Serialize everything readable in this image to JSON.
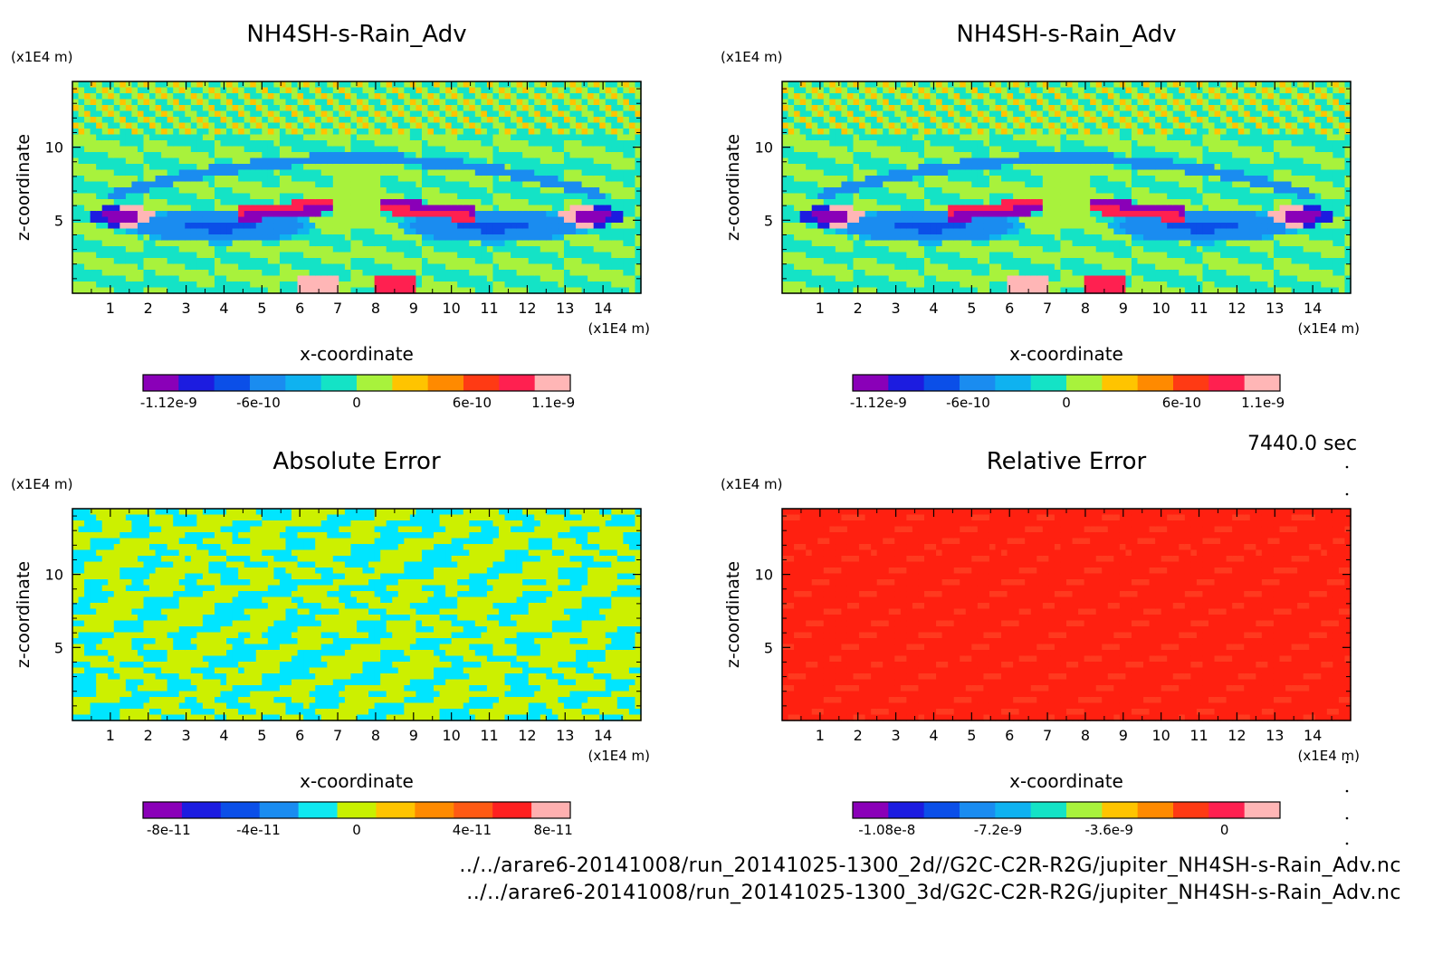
{
  "chart_data": [
    {
      "type": "heatmap",
      "title": "NH4SH-s-Rain_Adv",
      "xlabel": "x-coordinate",
      "ylabel": "z-coordinate",
      "x_unit": "(x1E4 m)",
      "y_unit": "(x1E4 m)",
      "xlim": [
        0,
        15
      ],
      "ylim": [
        0,
        14.5
      ],
      "x_ticks": [
        "1",
        "2",
        "3",
        "4",
        "5",
        "6",
        "7",
        "8",
        "9",
        "10",
        "11",
        "12",
        "13",
        "14"
      ],
      "y_ticks": [
        "5",
        "10"
      ],
      "colorbar": {
        "colors": [
          "#8a00b8",
          "#1c1ce0",
          "#0b4fe8",
          "#1a8cf0",
          "#0fb2f0",
          "#14e3c6",
          "#a8f23c",
          "#ffc400",
          "#ff8a00",
          "#ff3a14",
          "#ff2050",
          "#ffb6b6"
        ],
        "ticks": [
          "-1.12e-9",
          "-6e-10",
          "0",
          "6e-10",
          "1.1e-9"
        ]
      },
      "field": "advection"
    },
    {
      "type": "heatmap",
      "title": "NH4SH-s-Rain_Adv",
      "xlabel": "x-coordinate",
      "ylabel": "z-coordinate",
      "x_unit": "(x1E4 m)",
      "y_unit": "(x1E4 m)",
      "xlim": [
        0,
        15
      ],
      "ylim": [
        0,
        14.5
      ],
      "x_ticks": [
        "1",
        "2",
        "3",
        "4",
        "5",
        "6",
        "7",
        "8",
        "9",
        "10",
        "11",
        "12",
        "13",
        "14"
      ],
      "y_ticks": [
        "5",
        "10"
      ],
      "colorbar": {
        "colors": [
          "#8a00b8",
          "#1c1ce0",
          "#0b4fe8",
          "#1a8cf0",
          "#0fb2f0",
          "#14e3c6",
          "#a8f23c",
          "#ffc400",
          "#ff8a00",
          "#ff3a14",
          "#ff2050",
          "#ffb6b6"
        ],
        "ticks": [
          "-1.12e-9",
          "-6e-10",
          "0",
          "6e-10",
          "1.1e-9"
        ]
      },
      "field": "advection"
    },
    {
      "type": "heatmap",
      "title": "Absolute Error",
      "xlabel": "x-coordinate",
      "ylabel": "z-coordinate",
      "x_unit": "(x1E4 m)",
      "y_unit": "(x1E4 m)",
      "xlim": [
        0,
        15
      ],
      "ylim": [
        0,
        14.5
      ],
      "x_ticks": [
        "1",
        "2",
        "3",
        "4",
        "5",
        "6",
        "7",
        "8",
        "9",
        "10",
        "11",
        "12",
        "13",
        "14"
      ],
      "y_ticks": [
        "5",
        "10"
      ],
      "colorbar": {
        "colors": [
          "#8a00b8",
          "#1c1ce0",
          "#0b4fe8",
          "#1a8cf0",
          "#0fe8f0",
          "#c8f000",
          "#ffc400",
          "#ff8a00",
          "#ff5a14",
          "#ff2020",
          "#ffb0b0"
        ],
        "ticks": [
          "-8e-11",
          "-4e-11",
          "0",
          "4e-11",
          "8e-11"
        ]
      },
      "field": "abs"
    },
    {
      "type": "heatmap",
      "title": "Relative Error",
      "xlabel": "x-coordinate",
      "ylabel": "z-coordinate",
      "x_unit": "(x1E4 m)",
      "y_unit": "(x1E4 m)",
      "xlim": [
        0,
        15
      ],
      "ylim": [
        0,
        14.5
      ],
      "x_ticks": [
        "1",
        "2",
        "3",
        "4",
        "5",
        "6",
        "7",
        "8",
        "9",
        "10",
        "11",
        "12",
        "13",
        "14"
      ],
      "y_ticks": [
        "5",
        "10"
      ],
      "colorbar": {
        "colors": [
          "#8a00b8",
          "#1c1ce0",
          "#0b4fe8",
          "#1a8cf0",
          "#0fb2f0",
          "#14e3c6",
          "#a8f23c",
          "#ffc400",
          "#ff8a00",
          "#ff3a14",
          "#ff2050",
          "#ffb6b6"
        ],
        "ticks": [
          "-1.08e-8",
          "-7.2e-9",
          "-3.6e-9",
          "0"
        ]
      },
      "field": "rel"
    }
  ],
  "time_label": "7440.0 sec",
  "footer": {
    "line1": "../../arare6-20141008/run_20141025-1300_2d//G2C-C2R-R2G/jupiter_NH4SH-s-Rain_Adv.nc",
    "line2": "../../arare6-20141008/run_20141025-1300_3d/G2C-C2R-R2G/jupiter_NH4SH-s-Rain_Adv.nc"
  }
}
